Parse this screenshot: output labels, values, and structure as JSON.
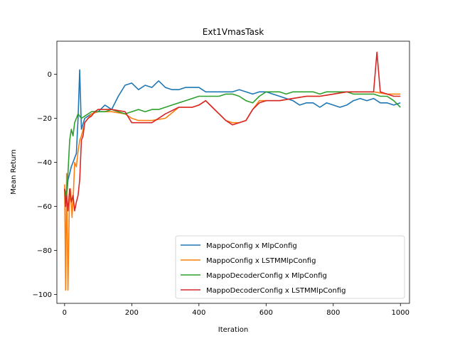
{
  "chart_data": {
    "type": "line",
    "title": "Ext1VmasTask",
    "xlabel": "Iteration",
    "ylabel": "Mean Return",
    "xlim": [
      -23,
      1027
    ],
    "ylim": [
      -104,
      15
    ],
    "xticks": [
      0,
      200,
      400,
      600,
      800,
      1000
    ],
    "yticks": [
      0,
      -20,
      -40,
      -60,
      -80,
      -100
    ],
    "xtick_labels": [
      "0",
      "200",
      "400",
      "600",
      "800",
      "1000"
    ],
    "ytick_labels": [
      "0",
      "−20",
      "−40",
      "−60",
      "−80",
      "−100"
    ],
    "grid": false,
    "legend_position": "lower-right",
    "series": [
      {
        "name": "MappoConfig x MlpConfig",
        "color": "#1f77b4",
        "points": [
          [
            0,
            -52
          ],
          [
            5,
            -58
          ],
          [
            10,
            -48
          ],
          [
            15,
            -45
          ],
          [
            20,
            -42
          ],
          [
            25,
            -40
          ],
          [
            30,
            -38
          ],
          [
            35,
            -36
          ],
          [
            40,
            -20
          ],
          [
            45,
            2
          ],
          [
            50,
            -25
          ],
          [
            60,
            -20
          ],
          [
            80,
            -18
          ],
          [
            100,
            -17
          ],
          [
            120,
            -14
          ],
          [
            140,
            -16
          ],
          [
            160,
            -10
          ],
          [
            180,
            -5
          ],
          [
            200,
            -4
          ],
          [
            220,
            -7
          ],
          [
            240,
            -5
          ],
          [
            260,
            -6
          ],
          [
            280,
            -3
          ],
          [
            300,
            -6
          ],
          [
            320,
            -7
          ],
          [
            340,
            -7
          ],
          [
            360,
            -6
          ],
          [
            380,
            -6
          ],
          [
            400,
            -6
          ],
          [
            420,
            -8
          ],
          [
            440,
            -8
          ],
          [
            460,
            -8
          ],
          [
            480,
            -8
          ],
          [
            500,
            -8
          ],
          [
            520,
            -7
          ],
          [
            540,
            -8
          ],
          [
            560,
            -9
          ],
          [
            580,
            -8
          ],
          [
            600,
            -8
          ],
          [
            620,
            -9
          ],
          [
            640,
            -10
          ],
          [
            660,
            -11
          ],
          [
            680,
            -12
          ],
          [
            700,
            -14
          ],
          [
            720,
            -13
          ],
          [
            740,
            -13
          ],
          [
            760,
            -15
          ],
          [
            780,
            -13
          ],
          [
            800,
            -14
          ],
          [
            820,
            -15
          ],
          [
            840,
            -14
          ],
          [
            860,
            -12
          ],
          [
            880,
            -11
          ],
          [
            900,
            -12
          ],
          [
            920,
            -11
          ],
          [
            940,
            -13
          ],
          [
            960,
            -13
          ],
          [
            980,
            -14
          ],
          [
            1000,
            -13
          ]
        ]
      },
      {
        "name": "MappoConfig x LSTMMlpConfig",
        "color": "#ff7f0e",
        "points": [
          [
            0,
            -50
          ],
          [
            3,
            -98
          ],
          [
            6,
            -45
          ],
          [
            10,
            -98
          ],
          [
            14,
            -60
          ],
          [
            18,
            -52
          ],
          [
            22,
            -65
          ],
          [
            26,
            -55
          ],
          [
            30,
            -40
          ],
          [
            35,
            -42
          ],
          [
            40,
            -35
          ],
          [
            45,
            -30
          ],
          [
            50,
            -28
          ],
          [
            60,
            -22
          ],
          [
            70,
            -20
          ],
          [
            80,
            -18
          ],
          [
            100,
            -17
          ],
          [
            140,
            -17
          ],
          [
            180,
            -18
          ],
          [
            200,
            -20
          ],
          [
            220,
            -21
          ],
          [
            260,
            -21
          ],
          [
            300,
            -20
          ],
          [
            340,
            -15
          ],
          [
            380,
            -15
          ],
          [
            400,
            -14
          ],
          [
            420,
            -12
          ],
          [
            440,
            -15
          ],
          [
            460,
            -18
          ],
          [
            480,
            -21
          ],
          [
            500,
            -22
          ],
          [
            520,
            -22
          ],
          [
            540,
            -21
          ],
          [
            560,
            -16
          ],
          [
            580,
            -12
          ],
          [
            600,
            -12
          ],
          [
            640,
            -12
          ],
          [
            680,
            -11
          ],
          [
            720,
            -10
          ],
          [
            760,
            -10
          ],
          [
            800,
            -9
          ],
          [
            840,
            -8
          ],
          [
            880,
            -8
          ],
          [
            920,
            -8
          ],
          [
            960,
            -9
          ],
          [
            1000,
            -9
          ]
        ]
      },
      {
        "name": "MappoDecoderConfig x MlpConfig",
        "color": "#2ca02c",
        "points": [
          [
            0,
            -52
          ],
          [
            5,
            -55
          ],
          [
            10,
            -45
          ],
          [
            15,
            -30
          ],
          [
            20,
            -25
          ],
          [
            25,
            -28
          ],
          [
            30,
            -22
          ],
          [
            35,
            -20
          ],
          [
            40,
            -18
          ],
          [
            50,
            -20
          ],
          [
            60,
            -19
          ],
          [
            80,
            -17
          ],
          [
            100,
            -17
          ],
          [
            120,
            -17
          ],
          [
            140,
            -16
          ],
          [
            160,
            -17
          ],
          [
            180,
            -18
          ],
          [
            200,
            -17
          ],
          [
            220,
            -16
          ],
          [
            240,
            -17
          ],
          [
            260,
            -16
          ],
          [
            280,
            -16
          ],
          [
            300,
            -15
          ],
          [
            320,
            -14
          ],
          [
            340,
            -13
          ],
          [
            360,
            -12
          ],
          [
            380,
            -11
          ],
          [
            400,
            -10
          ],
          [
            420,
            -10
          ],
          [
            440,
            -10
          ],
          [
            460,
            -10
          ],
          [
            480,
            -9
          ],
          [
            500,
            -9
          ],
          [
            520,
            -10
          ],
          [
            540,
            -12
          ],
          [
            560,
            -13
          ],
          [
            580,
            -10
          ],
          [
            600,
            -8
          ],
          [
            620,
            -8
          ],
          [
            640,
            -8
          ],
          [
            660,
            -9
          ],
          [
            680,
            -8
          ],
          [
            700,
            -8
          ],
          [
            720,
            -8
          ],
          [
            740,
            -8
          ],
          [
            760,
            -9
          ],
          [
            780,
            -8
          ],
          [
            800,
            -8
          ],
          [
            820,
            -8
          ],
          [
            840,
            -8
          ],
          [
            860,
            -9
          ],
          [
            880,
            -9
          ],
          [
            900,
            -9
          ],
          [
            920,
            -9
          ],
          [
            940,
            -10
          ],
          [
            960,
            -10
          ],
          [
            980,
            -12
          ],
          [
            1000,
            -15
          ]
        ]
      },
      {
        "name": "MappoDecoderConfig x LSTMMlpConfig",
        "color": "#d62728",
        "points": [
          [
            0,
            -52
          ],
          [
            3,
            -60
          ],
          [
            6,
            -55
          ],
          [
            10,
            -62
          ],
          [
            15,
            -52
          ],
          [
            20,
            -58
          ],
          [
            25,
            -55
          ],
          [
            30,
            -62
          ],
          [
            35,
            -58
          ],
          [
            40,
            -55
          ],
          [
            45,
            -48
          ],
          [
            50,
            -30
          ],
          [
            55,
            -28
          ],
          [
            60,
            -22
          ],
          [
            70,
            -20
          ],
          [
            80,
            -19
          ],
          [
            90,
            -17
          ],
          [
            100,
            -16
          ],
          [
            140,
            -16
          ],
          [
            180,
            -17
          ],
          [
            200,
            -22
          ],
          [
            220,
            -22
          ],
          [
            260,
            -22
          ],
          [
            300,
            -18
          ],
          [
            340,
            -15
          ],
          [
            380,
            -15
          ],
          [
            400,
            -14
          ],
          [
            420,
            -12
          ],
          [
            440,
            -15
          ],
          [
            460,
            -18
          ],
          [
            480,
            -21
          ],
          [
            500,
            -23
          ],
          [
            520,
            -22
          ],
          [
            540,
            -21
          ],
          [
            560,
            -16
          ],
          [
            580,
            -13
          ],
          [
            600,
            -12
          ],
          [
            640,
            -12
          ],
          [
            680,
            -11
          ],
          [
            720,
            -10
          ],
          [
            760,
            -10
          ],
          [
            800,
            -9
          ],
          [
            840,
            -8
          ],
          [
            880,
            -8
          ],
          [
            900,
            -8
          ],
          [
            920,
            -8
          ],
          [
            930,
            10
          ],
          [
            940,
            -8
          ],
          [
            960,
            -9
          ],
          [
            980,
            -10
          ],
          [
            1000,
            -10
          ]
        ]
      }
    ]
  }
}
